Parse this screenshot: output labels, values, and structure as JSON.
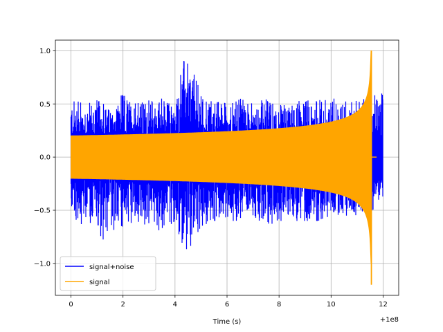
{
  "chart_data": {
    "type": "line",
    "title": "",
    "xlabel": "Time (s)",
    "ylabel": "",
    "x_offset_label": "+1e8",
    "xlim": [
      -0.6,
      12.6
    ],
    "ylim": [
      -1.3,
      1.1
    ],
    "x_ticks": [
      0,
      2,
      4,
      6,
      8,
      10,
      12
    ],
    "x_tick_labels": [
      "0",
      "2",
      "4",
      "6",
      "8",
      "10",
      "12"
    ],
    "y_ticks": [
      -1.0,
      -0.5,
      0.0,
      0.5,
      1.0
    ],
    "y_tick_labels": [
      "−1.0",
      "−0.5",
      "0.0",
      "0.5",
      "1.0"
    ],
    "grid": true,
    "legend_position": "lower-left",
    "series": [
      {
        "name": "signal+noise",
        "color": "#0000ff",
        "x_range": [
          0,
          12.0
        ],
        "envelope_top": [
          [
            0,
            0.55
          ],
          [
            0.5,
            0.5
          ],
          [
            1,
            0.55
          ],
          [
            1.5,
            0.45
          ],
          [
            2,
            0.6
          ],
          [
            2.5,
            0.5
          ],
          [
            3,
            0.55
          ],
          [
            3.5,
            0.55
          ],
          [
            4,
            0.5
          ],
          [
            4.4,
            1.0
          ],
          [
            5,
            0.6
          ],
          [
            5.5,
            0.55
          ],
          [
            6,
            0.5
          ],
          [
            6.5,
            0.55
          ],
          [
            7,
            0.5
          ],
          [
            7.5,
            0.55
          ],
          [
            8,
            0.5
          ],
          [
            8.5,
            0.5
          ],
          [
            9,
            0.55
          ],
          [
            9.5,
            0.55
          ],
          [
            10,
            0.55
          ],
          [
            10.5,
            0.55
          ],
          [
            11,
            0.55
          ],
          [
            11.6,
            0.6
          ],
          [
            12,
            0.6
          ]
        ],
        "envelope_bottom": [
          [
            0,
            -0.55
          ],
          [
            0.5,
            -0.65
          ],
          [
            1,
            -0.6
          ],
          [
            1.3,
            -0.93
          ],
          [
            1.5,
            -0.7
          ],
          [
            2,
            -0.65
          ],
          [
            2.5,
            -0.6
          ],
          [
            3,
            -0.65
          ],
          [
            3.5,
            -0.7
          ],
          [
            4,
            -0.6
          ],
          [
            4.4,
            -0.93
          ],
          [
            5,
            -0.65
          ],
          [
            5.5,
            -0.6
          ],
          [
            6,
            -0.6
          ],
          [
            6.5,
            -0.6
          ],
          [
            7,
            -0.55
          ],
          [
            7.5,
            -0.65
          ],
          [
            8,
            -0.6
          ],
          [
            8.5,
            -0.6
          ],
          [
            9,
            -0.6
          ],
          [
            9.5,
            -0.6
          ],
          [
            10,
            -0.55
          ],
          [
            10.5,
            -0.55
          ],
          [
            11,
            -0.55
          ],
          [
            11.6,
            -0.5
          ],
          [
            12,
            -0.45
          ]
        ]
      },
      {
        "name": "signal",
        "color": "#ffa500",
        "x_range": [
          0,
          11.55
        ],
        "start_amplitude": 0.2,
        "peak_amplitude": 1.0,
        "peak_min": -1.2,
        "merger_time": 11.55
      }
    ]
  }
}
